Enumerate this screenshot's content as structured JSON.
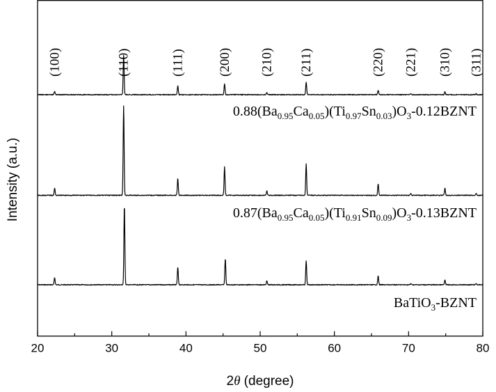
{
  "chart_data": {
    "type": "line",
    "title": "",
    "xlabel": {
      "symbol": "2",
      "italic": "θ",
      "rest": " (degree)"
    },
    "ylabel": "Intensity (a.u.)",
    "xlim": [
      20,
      80
    ],
    "xticks": [
      "20",
      "30",
      "40",
      "50",
      "60",
      "70",
      "80"
    ],
    "tick_values": [
      20,
      30,
      40,
      50,
      60,
      70,
      80
    ],
    "y_ticks_shown": false,
    "grid": false,
    "peak_labels": [
      {
        "hkl": "(100)",
        "x": 22.3
      },
      {
        "hkl": "(110)",
        "x": 31.6
      },
      {
        "hkl": "(111)",
        "x": 38.9
      },
      {
        "hkl": "(200)",
        "x": 45.2
      },
      {
        "hkl": "(210)",
        "x": 50.9
      },
      {
        "hkl": "(211)",
        "x": 56.2
      },
      {
        "hkl": "(220)",
        "x": 65.9
      },
      {
        "hkl": "(221)",
        "x": 70.3
      },
      {
        "hkl": "(310)",
        "x": 74.9
      },
      {
        "hkl": "(311)",
        "x": 79.1
      }
    ],
    "series": [
      {
        "name": "BaTiO3-BZNT",
        "label_parts": [
          {
            "t": "BaTiO"
          },
          {
            "t": "3",
            "sub": true
          },
          {
            "t": "-BZNT"
          }
        ],
        "peaks": [
          {
            "x": 22.3,
            "y": 0.09
          },
          {
            "x": 31.7,
            "y": 1.0
          },
          {
            "x": 38.9,
            "y": 0.22
          },
          {
            "x": 45.3,
            "y": 0.33
          },
          {
            "x": 50.9,
            "y": 0.05
          },
          {
            "x": 56.2,
            "y": 0.3
          },
          {
            "x": 65.9,
            "y": 0.11
          },
          {
            "x": 70.3,
            "y": 0.015
          },
          {
            "x": 74.9,
            "y": 0.06
          },
          {
            "x": 79.1,
            "y": 0.015
          }
        ]
      },
      {
        "name": "0.87(Ba0.95Ca0.05)(Ti0.91Sn0.09)O3-0.13BZNT",
        "label_parts": [
          {
            "t": "0.87(Ba"
          },
          {
            "t": "0.95",
            "sub": true
          },
          {
            "t": "Ca"
          },
          {
            "t": "0.05",
            "sub": true
          },
          {
            "t": ")(Ti"
          },
          {
            "t": "0.91",
            "sub": true
          },
          {
            "t": "Sn"
          },
          {
            "t": "0.09",
            "sub": true
          },
          {
            "t": ")O"
          },
          {
            "t": "3",
            "sub": true
          },
          {
            "t": "-0.13BZNT"
          }
        ],
        "peaks": [
          {
            "x": 22.3,
            "y": 0.08
          },
          {
            "x": 31.6,
            "y": 1.0
          },
          {
            "x": 38.9,
            "y": 0.19
          },
          {
            "x": 45.2,
            "y": 0.32
          },
          {
            "x": 50.9,
            "y": 0.05
          },
          {
            "x": 56.2,
            "y": 0.35
          },
          {
            "x": 65.9,
            "y": 0.13
          },
          {
            "x": 70.3,
            "y": 0.02
          },
          {
            "x": 74.9,
            "y": 0.08
          },
          {
            "x": 79.1,
            "y": 0.02
          }
        ]
      },
      {
        "name": "0.88(Ba0.95Ca0.05)(Ti0.97Sn0.03)O3-0.12BZNT",
        "label_parts": [
          {
            "t": "0.88(Ba"
          },
          {
            "t": "0.95",
            "sub": true
          },
          {
            "t": "Ca"
          },
          {
            "t": "0.05",
            "sub": true
          },
          {
            "t": ")(Ti"
          },
          {
            "t": "0.97",
            "sub": true
          },
          {
            "t": "Sn"
          },
          {
            "t": "0.03",
            "sub": true
          },
          {
            "t": ")O"
          },
          {
            "t": "3",
            "sub": true
          },
          {
            "t": "-0.12BZNT"
          }
        ],
        "peaks": [
          {
            "x": 22.3,
            "y": 0.08
          },
          {
            "x": 31.6,
            "y": 0.95
          },
          {
            "x": 38.9,
            "y": 0.22
          },
          {
            "x": 45.2,
            "y": 0.26
          },
          {
            "x": 50.9,
            "y": 0.05
          },
          {
            "x": 56.2,
            "y": 0.3
          },
          {
            "x": 65.9,
            "y": 0.11
          },
          {
            "x": 70.3,
            "y": 0.02
          },
          {
            "x": 74.9,
            "y": 0.07
          },
          {
            "x": 79.1,
            "y": 0.02
          }
        ]
      }
    ]
  }
}
